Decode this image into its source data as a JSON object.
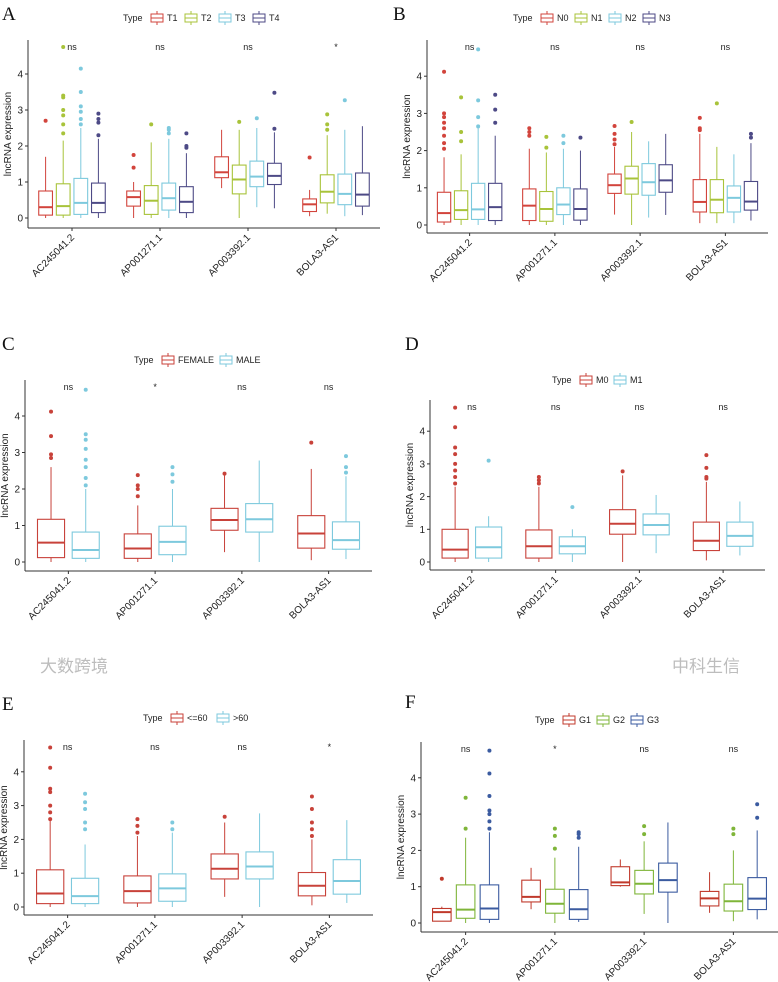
{
  "chart_data": [
    {
      "panel": "A",
      "type": "box",
      "legend_title": "Type",
      "groups": [
        {
          "name": "T1",
          "color": "#D2443C"
        },
        {
          "name": "T2",
          "color": "#A8C33A"
        },
        {
          "name": "T3",
          "color": "#7DC9DD"
        },
        {
          "name": "T4",
          "color": "#4D4A86"
        }
      ],
      "categories": [
        "AC245041.2",
        "AP001271.1",
        "AP003392.1",
        "BOLA3-AS1"
      ],
      "ylabel": "lncRNA expression",
      "yticks": [
        0,
        1,
        2,
        3,
        4
      ],
      "ylim": [
        0,
        4.9
      ],
      "significance": [
        "ns",
        "ns",
        "ns",
        "*"
      ],
      "boxes": [
        [
          [
            0,
            0.08,
            0.3,
            0.75,
            1.7,
            [
              2.7
            ]
          ],
          [
            0,
            0.08,
            0.33,
            0.95,
            2.15,
            [
              2.35,
              2.6,
              2.85,
              3,
              3.35,
              3.4,
              4.75
            ]
          ],
          [
            0,
            0.1,
            0.42,
            1.1,
            2.5,
            [
              2.6,
              2.75,
              2.95,
              3.1,
              3.5,
              4.15
            ]
          ],
          [
            0,
            0.15,
            0.42,
            0.97,
            2.2,
            [
              2.3,
              2.65,
              2.75,
              2.9
            ]
          ]
        ],
        [
          [
            0,
            0.33,
            0.58,
            0.75,
            1,
            [
              1.4,
              1.75
            ]
          ],
          [
            0,
            0.1,
            0.48,
            0.9,
            2.1,
            [
              2.6
            ]
          ],
          [
            0,
            0.22,
            0.55,
            0.97,
            2.2,
            [
              2.35,
              2.45,
              2.5
            ]
          ],
          [
            0,
            0.15,
            0.45,
            0.87,
            1.8,
            [
              1.95,
              2,
              2.35
            ]
          ]
        ],
        [
          [
            0.83,
            1.12,
            1.27,
            1.7,
            2.45,
            []
          ],
          [
            0,
            0.67,
            1.07,
            1.47,
            2.45,
            [
              2.67
            ]
          ],
          [
            0.3,
            0.87,
            1.15,
            1.58,
            2.5,
            [
              2.77
            ]
          ],
          [
            0.27,
            0.93,
            1.17,
            1.52,
            2.38,
            [
              2.48,
              3.48
            ]
          ]
        ],
        [
          [
            0.05,
            0.18,
            0.38,
            0.53,
            0.78,
            [
              1.68
            ]
          ],
          [
            0.12,
            0.42,
            0.73,
            1.2,
            2.3,
            [
              2.45,
              2.6,
              2.88
            ]
          ],
          [
            0.05,
            0.37,
            0.67,
            1.22,
            2.45,
            [
              3.27
            ]
          ],
          [
            0.08,
            0.33,
            0.65,
            1.25,
            2.55,
            []
          ]
        ]
      ]
    },
    {
      "panel": "B",
      "type": "box",
      "legend_title": "Type",
      "groups": [
        {
          "name": "N0",
          "color": "#D2443C"
        },
        {
          "name": "N1",
          "color": "#A8C33A"
        },
        {
          "name": "N2",
          "color": "#7DC9DD"
        },
        {
          "name": "N3",
          "color": "#4D4A86"
        }
      ],
      "categories": [
        "AC245041.2",
        "AP001271.1",
        "AP003392.1",
        "BOLA3-AS1"
      ],
      "ylabel": "lncRNA expression",
      "yticks": [
        0,
        1,
        2,
        3,
        4
      ],
      "ylim": [
        0,
        4.9
      ],
      "significance": [
        "ns",
        "ns",
        "ns",
        "ns"
      ],
      "boxes": [
        [
          [
            0,
            0.08,
            0.32,
            0.88,
            1.82,
            [
              2.05,
              2.2,
              2.4,
              2.6,
              2.75,
              2.9,
              3.0,
              4.12
            ]
          ],
          [
            0,
            0.15,
            0.4,
            0.92,
            1.9,
            [
              2.25,
              2.5,
              3.43
            ]
          ],
          [
            0,
            0.15,
            0.42,
            1.12,
            2.6,
            [
              2.65,
              2.9,
              3.35,
              4.72
            ]
          ],
          [
            0,
            0.12,
            0.48,
            1.12,
            2.4,
            [
              2.75,
              3.1,
              3.5
            ]
          ]
        ],
        [
          [
            0,
            0.12,
            0.52,
            0.97,
            2.05,
            [
              2.4,
              2.5,
              2.6
            ]
          ],
          [
            0,
            0.1,
            0.43,
            0.9,
            1.95,
            [
              2.08,
              2.37
            ]
          ],
          [
            0,
            0.28,
            0.55,
            1,
            2.05,
            [
              2.2,
              2.4
            ]
          ],
          [
            0,
            0.13,
            0.43,
            0.97,
            2,
            [
              2.35
            ]
          ]
        ],
        [
          [
            0.28,
            0.85,
            1.07,
            1.37,
            2.1,
            [
              2.17,
              2.3,
              2.45,
              2.66
            ]
          ],
          [
            0,
            0.83,
            1.25,
            1.58,
            2.5,
            [
              2.77
            ]
          ],
          [
            0.2,
            0.8,
            1.15,
            1.65,
            2.25,
            []
          ],
          [
            0.27,
            0.88,
            1.2,
            1.62,
            2.45,
            []
          ]
        ],
        [
          [
            0.05,
            0.35,
            0.62,
            1.22,
            2.45,
            [
              2.55,
              2.6,
              2.88
            ]
          ],
          [
            0.05,
            0.33,
            0.68,
            1.22,
            2.1,
            [
              3.27
            ]
          ],
          [
            0.05,
            0.35,
            0.73,
            1.05,
            1.9,
            []
          ],
          [
            0.12,
            0.4,
            0.63,
            1.17,
            2.2,
            [
              2.35,
              2.45
            ]
          ]
        ]
      ]
    },
    {
      "panel": "C",
      "type": "box",
      "legend_title": "Type",
      "groups": [
        {
          "name": "FEMALE",
          "color": "#C8423A"
        },
        {
          "name": "MALE",
          "color": "#7DC9DD"
        }
      ],
      "categories": [
        "AC245041.2",
        "AP001271.1",
        "AP003392.1",
        "BOLA3-AS1"
      ],
      "ylabel": "lncRNA expression",
      "yticks": [
        0,
        1,
        2,
        3,
        4
      ],
      "ylim": [
        0,
        4.9
      ],
      "significance": [
        "ns",
        "*",
        "ns",
        "ns"
      ],
      "boxes": [
        [
          [
            0,
            0.12,
            0.53,
            1.17,
            2.6,
            [
              2.85,
              2.95,
              3.45,
              4.12
            ]
          ],
          [
            0,
            0.1,
            0.33,
            0.82,
            2,
            [
              2.1,
              2.3,
              2.6,
              2.8,
              3.1,
              3.35,
              3.5,
              4.72
            ]
          ]
        ],
        [
          [
            0,
            0.1,
            0.37,
            0.77,
            1.55,
            [
              1.8,
              2,
              2.1,
              2.38
            ]
          ],
          [
            0,
            0.2,
            0.55,
            0.98,
            2,
            [
              2.2,
              2.4,
              2.6
            ]
          ]
        ],
        [
          [
            0.27,
            0.87,
            1.15,
            1.47,
            2.38,
            [
              2.42
            ]
          ],
          [
            0,
            0.82,
            1.17,
            1.6,
            2.78,
            []
          ]
        ],
        [
          [
            0.05,
            0.38,
            0.78,
            1.27,
            2.55,
            [
              3.27
            ]
          ],
          [
            0.08,
            0.35,
            0.6,
            1.1,
            2.35,
            [
              2.45,
              2.6,
              2.9
            ]
          ]
        ]
      ]
    },
    {
      "panel": "D",
      "type": "box",
      "legend_title": "Type",
      "groups": [
        {
          "name": "M0",
          "color": "#C8423A"
        },
        {
          "name": "M1",
          "color": "#7DC9DD"
        }
      ],
      "categories": [
        "AC245041.2",
        "AP001271.1",
        "AP003392.1",
        "BOLA3-AS1"
      ],
      "ylabel": "lncRNA expression",
      "yticks": [
        0,
        1,
        2,
        3,
        4
      ],
      "ylim": [
        0,
        4.9
      ],
      "significance": [
        "ns",
        "ns",
        "ns",
        "ns"
      ],
      "boxes": [
        [
          [
            0,
            0.12,
            0.38,
            1.0,
            2.3,
            [
              2.4,
              2.6,
              2.8,
              3,
              3.3,
              3.5,
              4.12,
              4.72
            ]
          ],
          [
            0,
            0.12,
            0.45,
            1.07,
            1.4,
            [
              3.1
            ]
          ]
        ],
        [
          [
            0,
            0.12,
            0.48,
            0.98,
            2.3,
            [
              2.4,
              2.5,
              2.6
            ]
          ],
          [
            0,
            0.25,
            0.48,
            0.77,
            1,
            [
              1.68
            ]
          ]
        ],
        [
          [
            0,
            0.85,
            1.17,
            1.6,
            2.65,
            [
              2.77
            ]
          ],
          [
            0.27,
            0.83,
            1.13,
            1.47,
            2.05,
            []
          ]
        ],
        [
          [
            0.05,
            0.35,
            0.65,
            1.22,
            2.45,
            [
              2.55,
              2.6,
              2.88,
              3.27
            ]
          ],
          [
            0.2,
            0.48,
            0.8,
            1.22,
            1.85,
            []
          ]
        ]
      ]
    },
    {
      "panel": "E",
      "type": "box",
      "legend_title": "Type",
      "groups": [
        {
          "name": "<=60",
          "color": "#C8423A"
        },
        {
          "name": ">60",
          "color": "#7DC9DD"
        }
      ],
      "categories": [
        "AC245041.2",
        "AP001271.1",
        "AP003392.1",
        "BOLA3-AS1"
      ],
      "ylabel": "lncRNA expression",
      "yticks": [
        0,
        1,
        2,
        3,
        4
      ],
      "ylim": [
        0,
        4.9
      ],
      "significance": [
        "ns",
        "ns",
        "ns",
        "*"
      ],
      "boxes": [
        [
          [
            0,
            0.1,
            0.4,
            1.1,
            2.55,
            [
              2.6,
              2.8,
              3,
              3.4,
              3.5,
              4.12,
              4.72
            ]
          ],
          [
            0,
            0.1,
            0.32,
            0.85,
            1.85,
            [
              2.3,
              2.5,
              2.9,
              3.1,
              3.35
            ]
          ]
        ],
        [
          [
            0,
            0.12,
            0.47,
            0.92,
            2.1,
            [
              2.2,
              2.4,
              2.6
            ]
          ],
          [
            0,
            0.17,
            0.55,
            0.98,
            2.2,
            [
              2.3,
              2.5
            ]
          ]
        ],
        [
          [
            0.3,
            0.83,
            1.13,
            1.57,
            2.5,
            [
              2.67
            ]
          ],
          [
            0,
            0.83,
            1.2,
            1.63,
            2.77,
            []
          ]
        ],
        [
          [
            0.05,
            0.33,
            0.63,
            1.02,
            2,
            [
              2.1,
              2.3,
              2.5,
              2.9,
              3.27
            ]
          ],
          [
            0.12,
            0.38,
            0.77,
            1.4,
            2.57,
            []
          ]
        ]
      ]
    },
    {
      "panel": "F",
      "type": "box",
      "legend_title": "Type",
      "groups": [
        {
          "name": "G1",
          "color": "#C0392B"
        },
        {
          "name": "G2",
          "color": "#7FB539"
        },
        {
          "name": "G3",
          "color": "#3B5BA0"
        }
      ],
      "categories": [
        "AC245041.2",
        "AP001271.1",
        "AP003392.1",
        "BOLA3-AS1"
      ],
      "ylabel": "lncRNA expression",
      "yticks": [
        0,
        1,
        2,
        3,
        4
      ],
      "ylim": [
        0,
        4.9
      ],
      "significance": [
        "ns",
        "*",
        "ns",
        "ns"
      ],
      "boxes": [
        [
          [
            0.05,
            0.05,
            0.3,
            0.4,
            0.45,
            [
              1.22
            ]
          ],
          [
            0,
            0.13,
            0.37,
            1.05,
            2.35,
            [
              2.6,
              3.45
            ]
          ],
          [
            0,
            0.1,
            0.4,
            1.05,
            2.5,
            [
              2.6,
              2.8,
              3,
              3.1,
              3.5,
              4.12,
              4.75
            ]
          ]
        ],
        [
          [
            0.38,
            0.58,
            0.72,
            1.18,
            1.52,
            []
          ],
          [
            0,
            0.27,
            0.53,
            0.93,
            1.8,
            [
              2.05,
              2.4,
              2.6
            ]
          ],
          [
            0.03,
            0.1,
            0.38,
            0.92,
            2.1,
            [
              2.35,
              2.45,
              2.5
            ]
          ]
        ],
        [
          [
            1,
            1.03,
            1.12,
            1.55,
            1.75,
            []
          ],
          [
            0.25,
            0.8,
            1.08,
            1.45,
            2.25,
            [
              2.45,
              2.67
            ]
          ],
          [
            0,
            0.85,
            1.18,
            1.65,
            2.77,
            []
          ]
        ],
        [
          [
            0.28,
            0.47,
            0.68,
            0.87,
            1.4,
            []
          ],
          [
            0.05,
            0.33,
            0.6,
            1.07,
            2,
            [
              2.45,
              2.6
            ]
          ],
          [
            0.1,
            0.37,
            0.67,
            1.25,
            2.55,
            [
              2.9,
              3.27
            ]
          ]
        ]
      ]
    }
  ],
  "watermarks": [
    "中科生信",
    "大数跨境"
  ]
}
